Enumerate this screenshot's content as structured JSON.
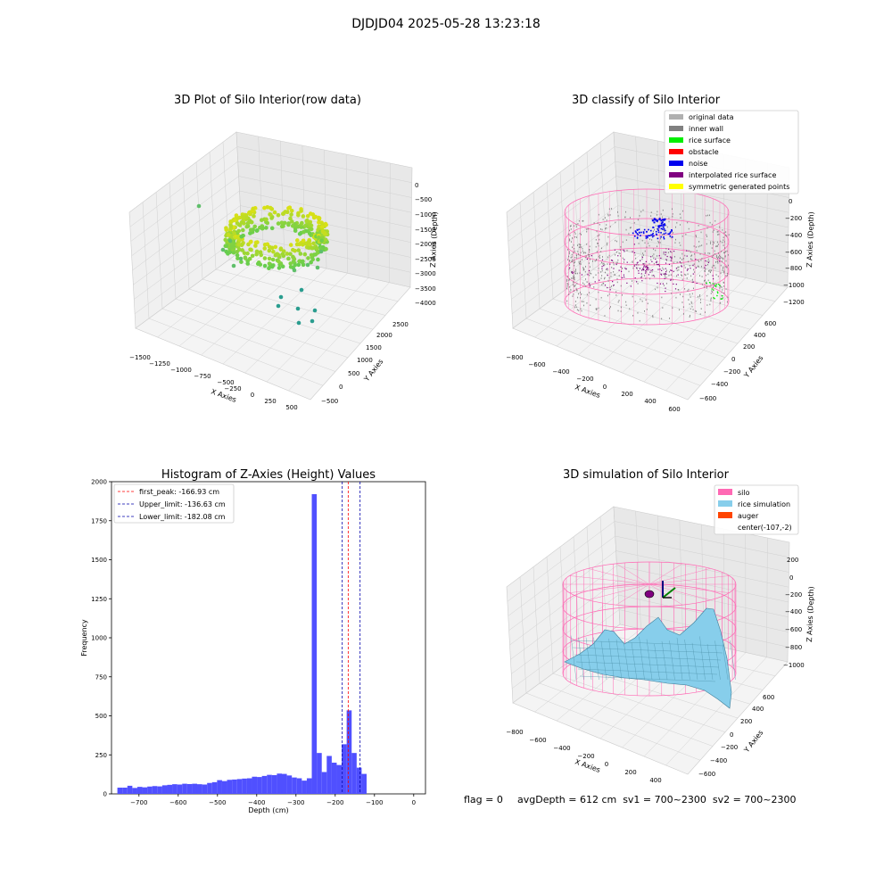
{
  "figure_title": "DJDJD04 2025-05-28 13:23:18",
  "colors": {
    "pane_fill": "#f2f2f2",
    "grid": "#d0d0d0",
    "hist_bar": "#5050ff",
    "first_peak_line": "#ff0000",
    "limit_line": "#0000aa",
    "silo": "#ff69b4",
    "rice": "#87ceeb",
    "auger": "#ff4500",
    "original": "#b0b0b0",
    "inner_wall": "#808080",
    "rice_surface": "#00ee00",
    "obstacle": "#ff0000",
    "noise": "#0000ee",
    "interp": "#800080",
    "symmetric": "#ffff00"
  },
  "chart_data": [
    {
      "type": "scatter",
      "title": "3D Plot of Silo Interior(row data)",
      "xlabel": "X Axies",
      "ylabel": "Y Axies",
      "zlabel": "Z Axies (Depth)",
      "x_ticks": [
        "−1500",
        "−1250",
        "−1000",
        "−750",
        "−500",
        "−250",
        "0",
        "250",
        "500"
      ],
      "y_ticks": [
        "−500",
        "0",
        "500",
        "1000",
        "1500",
        "2000",
        "2500"
      ],
      "z_ticks": [
        "0",
        "−500",
        "−1000",
        "−1500",
        "−2000",
        "−2500",
        "−3000",
        "−3500",
        "−4000"
      ],
      "grid": true
    },
    {
      "type": "scatter",
      "title": "3D classify of Silo Interior",
      "xlabel": "X Axies",
      "ylabel": "Y Axies",
      "zlabel": "Z Axies (Depth)",
      "x_ticks": [
        "−800",
        "−600",
        "−400",
        "−200",
        "0",
        "200",
        "400",
        "600"
      ],
      "y_ticks": [
        "−600",
        "−400",
        "−200",
        "0",
        "200",
        "400",
        "600"
      ],
      "z_ticks": [
        "0",
        "−200",
        "−400",
        "−600",
        "−800",
        "−1000",
        "−1200"
      ],
      "legend": [
        "original data",
        "inner wall",
        "rice surface",
        "obstacle",
        "noise",
        "interpolated rice surface",
        "symmetric generated points"
      ],
      "legend_placement": "top-right",
      "grid": true
    },
    {
      "type": "bar",
      "title": "Histogram of Z-Axies (Height) Values",
      "xlabel": "Depth (cm)",
      "ylabel": "Frequency",
      "xlim": [
        -770,
        30
      ],
      "ylim": [
        0,
        2000
      ],
      "x_ticks": [
        {
          "v": -700,
          "label": "−700"
        },
        {
          "v": -600,
          "label": "−600"
        },
        {
          "v": -500,
          "label": "−500"
        },
        {
          "v": -400,
          "label": "−400"
        },
        {
          "v": -300,
          "label": "−300"
        },
        {
          "v": -200,
          "label": "−200"
        },
        {
          "v": -100,
          "label": "−100"
        },
        {
          "v": 0,
          "label": "0"
        }
      ],
      "y_ticks": [
        {
          "v": 0,
          "label": "0"
        },
        {
          "v": 250,
          "label": "250"
        },
        {
          "v": 500,
          "label": "500"
        },
        {
          "v": 750,
          "label": "750"
        },
        {
          "v": 1000,
          "label": "1000"
        },
        {
          "v": 1250,
          "label": "1250"
        },
        {
          "v": 1500,
          "label": "1500"
        },
        {
          "v": 1750,
          "label": "1750"
        },
        {
          "v": 2000,
          "label": "2000"
        }
      ],
      "bin_start": -755,
      "bin_width": 12.7,
      "values": [
        40,
        40,
        52,
        38,
        45,
        42,
        47,
        50,
        48,
        55,
        58,
        62,
        60,
        65,
        63,
        65,
        62,
        60,
        70,
        75,
        88,
        82,
        90,
        92,
        95,
        98,
        100,
        110,
        108,
        115,
        122,
        120,
        130,
        128,
        118,
        105,
        100,
        85,
        100,
        1920,
        262,
        140,
        243,
        200,
        185,
        318,
        535,
        262,
        168,
        128
      ],
      "lines": [
        {
          "name": "first_peak: -166.93 cm",
          "x": -166.93,
          "color": "#ff0000"
        },
        {
          "name": "Upper_limit: -136.63 cm",
          "x": -136.63,
          "color": "#0000aa"
        },
        {
          "name": "Lower_limit: -182.08 cm",
          "x": -182.08,
          "color": "#0000aa"
        }
      ],
      "legend_placement": "top-left"
    },
    {
      "type": "surface",
      "title": "3D simulation of Silo Interior",
      "xlabel": "X Axies",
      "ylabel": "Y Axies",
      "zlabel": "Z Axies (Depth)",
      "x_ticks": [
        "−800",
        "−600",
        "−400",
        "−200",
        "0",
        "200",
        "400"
      ],
      "y_ticks": [
        "−600",
        "−400",
        "−200",
        "0",
        "200",
        "400",
        "600"
      ],
      "z_ticks": [
        "200",
        "0",
        "−200",
        "−400",
        "−600",
        "−800",
        "−1000"
      ],
      "legend": [
        "silo",
        "rice simulation",
        "auger",
        "center(-107,-2)"
      ],
      "legend_placement": "top-right",
      "grid": true
    }
  ],
  "status": {
    "flag": "flag = 0",
    "avg": "avgDepth = 612 cm  sv1 = 700~2300  sv2 = 700~2300"
  }
}
